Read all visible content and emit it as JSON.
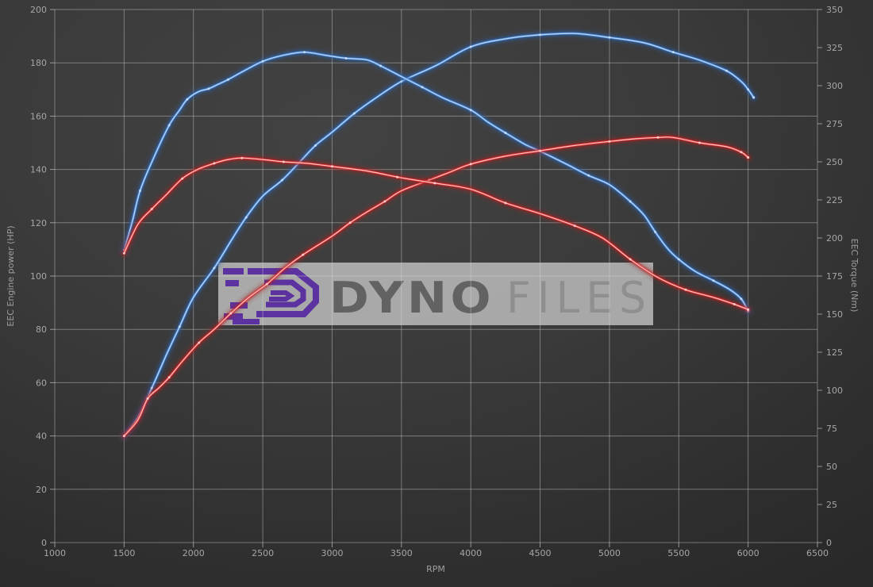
{
  "colors": {
    "background_top": "#414141",
    "background_edge": "#2a2a2a",
    "gridline": "#d8d8d8",
    "tick_text": "#a6a6a6"
  },
  "watermark": {
    "text_bold": "DYNO",
    "text_light": "FILES",
    "panel_color": "#bcbcbc",
    "panel_opacity": 0.85,
    "logo_color": "#5b32a0",
    "text_bold_color": "#626262",
    "text_light_color": "#8f8f8f"
  },
  "chart_data": {
    "type": "line",
    "title": "",
    "xlabel": "RPM",
    "ylabel_left": "EEC Engine power (HP)",
    "ylabel_right": "EEC Torque (Nm)",
    "x_range": [
      1000,
      6500
    ],
    "y_left_range": [
      0,
      200
    ],
    "y_right_range": [
      0,
      350
    ],
    "x_ticks": [
      1000,
      1500,
      2000,
      2500,
      3000,
      3500,
      4000,
      4500,
      5000,
      5500,
      6000,
      6500
    ],
    "y_left_ticks": [
      0,
      20,
      40,
      60,
      80,
      100,
      120,
      140,
      160,
      180,
      200
    ],
    "y_right_ticks": [
      0,
      25,
      50,
      75,
      100,
      125,
      150,
      175,
      200,
      225,
      250,
      275,
      300,
      325,
      350
    ],
    "grid": true,
    "legend_position": "none",
    "series": [
      {
        "id": "power-blue",
        "axis": "left",
        "unit": "HP",
        "color": "#4f8fdc",
        "glow": "#2d62ad",
        "core": "#c9defa",
        "points": [
          [
            1500,
            40
          ],
          [
            1600,
            47
          ],
          [
            1700,
            58
          ],
          [
            1810,
            71
          ],
          [
            1900,
            81
          ],
          [
            2000,
            92
          ],
          [
            2150,
            103
          ],
          [
            2280,
            114
          ],
          [
            2380,
            122
          ],
          [
            2500,
            130
          ],
          [
            2640,
            136
          ],
          [
            2770,
            143
          ],
          [
            2880,
            149
          ],
          [
            3000,
            154
          ],
          [
            3160,
            161
          ],
          [
            3320,
            167
          ],
          [
            3500,
            173
          ],
          [
            3750,
            179
          ],
          [
            4000,
            186
          ],
          [
            4250,
            189
          ],
          [
            4500,
            190.5
          ],
          [
            4750,
            191
          ],
          [
            5000,
            189.5
          ],
          [
            5250,
            187.5
          ],
          [
            5460,
            184
          ],
          [
            5650,
            181
          ],
          [
            5845,
            177
          ],
          [
            5950,
            173
          ],
          [
            6000,
            170
          ],
          [
            6040,
            167
          ]
        ]
      },
      {
        "id": "torque-blue",
        "axis": "right",
        "unit": "Nm",
        "color": "#4f8fdc",
        "glow": "#2d62ad",
        "core": "#c9defa",
        "points": [
          [
            1500,
            192
          ],
          [
            1560,
            211
          ],
          [
            1615,
            231
          ],
          [
            1710,
            252
          ],
          [
            1825,
            274
          ],
          [
            1900,
            284
          ],
          [
            1955,
            291
          ],
          [
            2035,
            296
          ],
          [
            2110,
            298
          ],
          [
            2180,
            301
          ],
          [
            2250,
            304
          ],
          [
            2350,
            309
          ],
          [
            2500,
            316
          ],
          [
            2650,
            320
          ],
          [
            2800,
            322
          ],
          [
            2950,
            320
          ],
          [
            3100,
            318
          ],
          [
            3250,
            317
          ],
          [
            3350,
            313
          ],
          [
            3500,
            306
          ],
          [
            3650,
            299
          ],
          [
            3800,
            292
          ],
          [
            4000,
            284
          ],
          [
            4125,
            276
          ],
          [
            4250,
            269
          ],
          [
            4400,
            261
          ],
          [
            4500,
            257
          ],
          [
            4700,
            248
          ],
          [
            4850,
            241
          ],
          [
            5000,
            235
          ],
          [
            5150,
            224
          ],
          [
            5250,
            215
          ],
          [
            5330,
            204
          ],
          [
            5420,
            193
          ],
          [
            5500,
            186
          ],
          [
            5620,
            178
          ],
          [
            5750,
            172
          ],
          [
            5870,
            166
          ],
          [
            5950,
            160
          ],
          [
            6000,
            152
          ]
        ]
      },
      {
        "id": "power-red",
        "axis": "left",
        "unit": "HP",
        "color": "#e03535",
        "glow": "#b02020",
        "core": "#ffd2d2",
        "points": [
          [
            1500,
            40
          ],
          [
            1600,
            46
          ],
          [
            1670,
            54
          ],
          [
            1750,
            58
          ],
          [
            1825,
            62
          ],
          [
            1920,
            68
          ],
          [
            2040,
            75
          ],
          [
            2150,
            80
          ],
          [
            2270,
            86
          ],
          [
            2400,
            92
          ],
          [
            2530,
            97
          ],
          [
            2660,
            103
          ],
          [
            2790,
            108
          ],
          [
            3000,
            115
          ],
          [
            3130,
            120
          ],
          [
            3250,
            124
          ],
          [
            3380,
            128
          ],
          [
            3500,
            132
          ],
          [
            3700,
            136
          ],
          [
            3850,
            139
          ],
          [
            4000,
            142
          ],
          [
            4250,
            145
          ],
          [
            4500,
            147
          ],
          [
            4750,
            149
          ],
          [
            5000,
            150.5
          ],
          [
            5185,
            151.5
          ],
          [
            5350,
            152
          ],
          [
            5460,
            152
          ],
          [
            5650,
            150
          ],
          [
            5845,
            148.5
          ],
          [
            5950,
            146.5
          ],
          [
            6000,
            144.5
          ]
        ]
      },
      {
        "id": "torque-red",
        "axis": "right",
        "unit": "Nm",
        "color": "#e03535",
        "glow": "#b02020",
        "core": "#ffd2d2",
        "points": [
          [
            1500,
            190
          ],
          [
            1600,
            209
          ],
          [
            1700,
            219
          ],
          [
            1800,
            228
          ],
          [
            1920,
            239
          ],
          [
            2030,
            245
          ],
          [
            2150,
            249
          ],
          [
            2250,
            251.5
          ],
          [
            2350,
            252.5
          ],
          [
            2500,
            251.5
          ],
          [
            2650,
            250
          ],
          [
            2820,
            249
          ],
          [
            3000,
            247
          ],
          [
            3250,
            244
          ],
          [
            3470,
            240
          ],
          [
            3600,
            238
          ],
          [
            3740,
            236
          ],
          [
            4000,
            232
          ],
          [
            4250,
            223
          ],
          [
            4500,
            216
          ],
          [
            4750,
            208
          ],
          [
            4950,
            200
          ],
          [
            5150,
            186
          ],
          [
            5350,
            174
          ],
          [
            5550,
            166
          ],
          [
            5750,
            161
          ],
          [
            5900,
            156.5
          ],
          [
            6000,
            153
          ]
        ]
      }
    ]
  }
}
